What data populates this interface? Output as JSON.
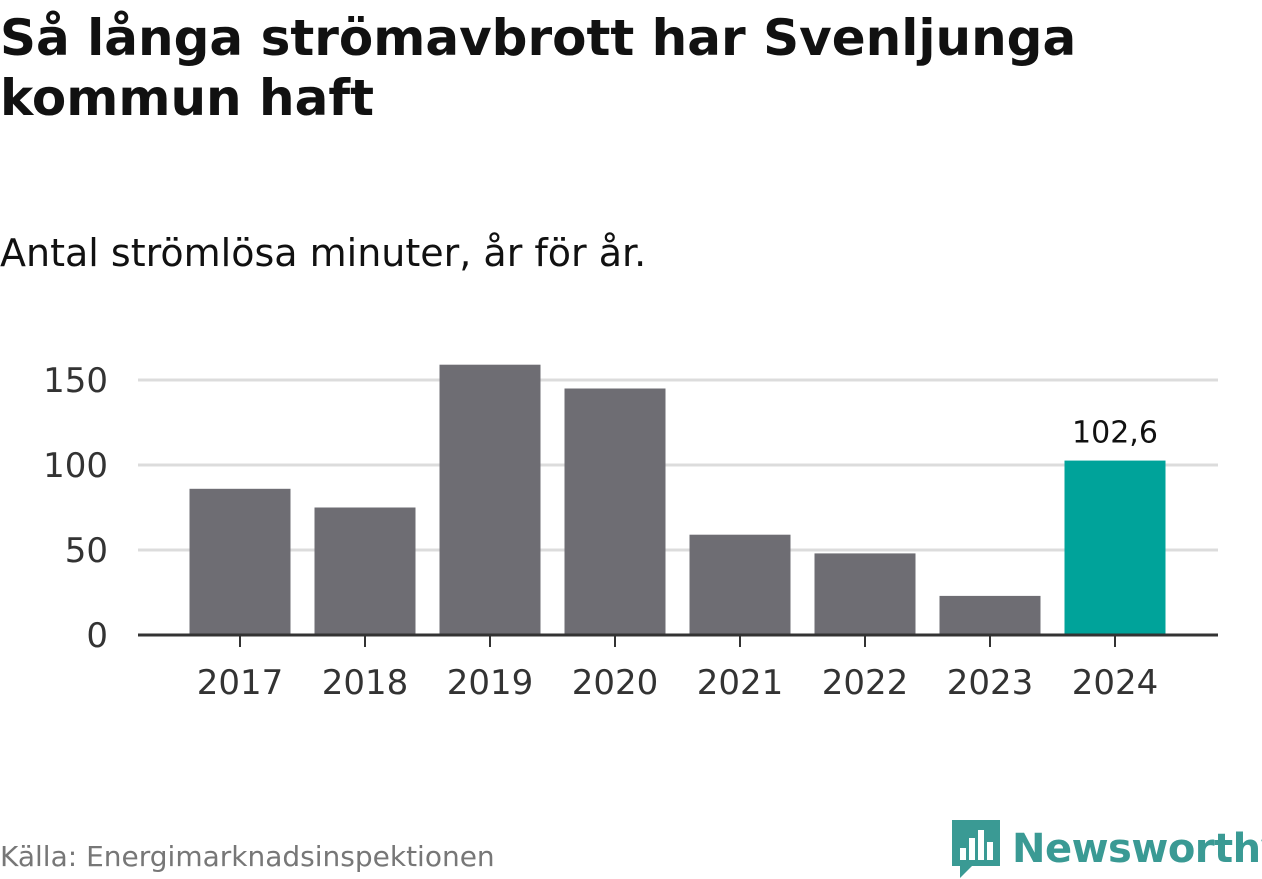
{
  "title": "Så långa strömavbrott har Svenljunga kommun haft",
  "subtitle": "Antal strömlösa minuter, år för år.",
  "source": "Källa: Energimarknadsinspektionen",
  "logo": {
    "text": "Newsworthy",
    "icon": "bar-chart-speech-bubble-icon",
    "color": "#3a9a94"
  },
  "colors": {
    "bar": "#6e6d73",
    "highlight": "#00a39a",
    "grid": "#dcdcdc",
    "axis": "#333333"
  },
  "chart_data": {
    "type": "bar",
    "categories": [
      "2017",
      "2018",
      "2019",
      "2020",
      "2021",
      "2022",
      "2023",
      "2024"
    ],
    "values": [
      86,
      75,
      159,
      145,
      59,
      48,
      23,
      102.6
    ],
    "highlight_index": 7,
    "data_labels": [
      {
        "index": 7,
        "text": "102,6"
      }
    ],
    "yticks": [
      0,
      50,
      100,
      150
    ],
    "ylim": [
      0,
      160
    ],
    "xlabel": "",
    "ylabel": "",
    "grid": true,
    "legend": "none"
  }
}
